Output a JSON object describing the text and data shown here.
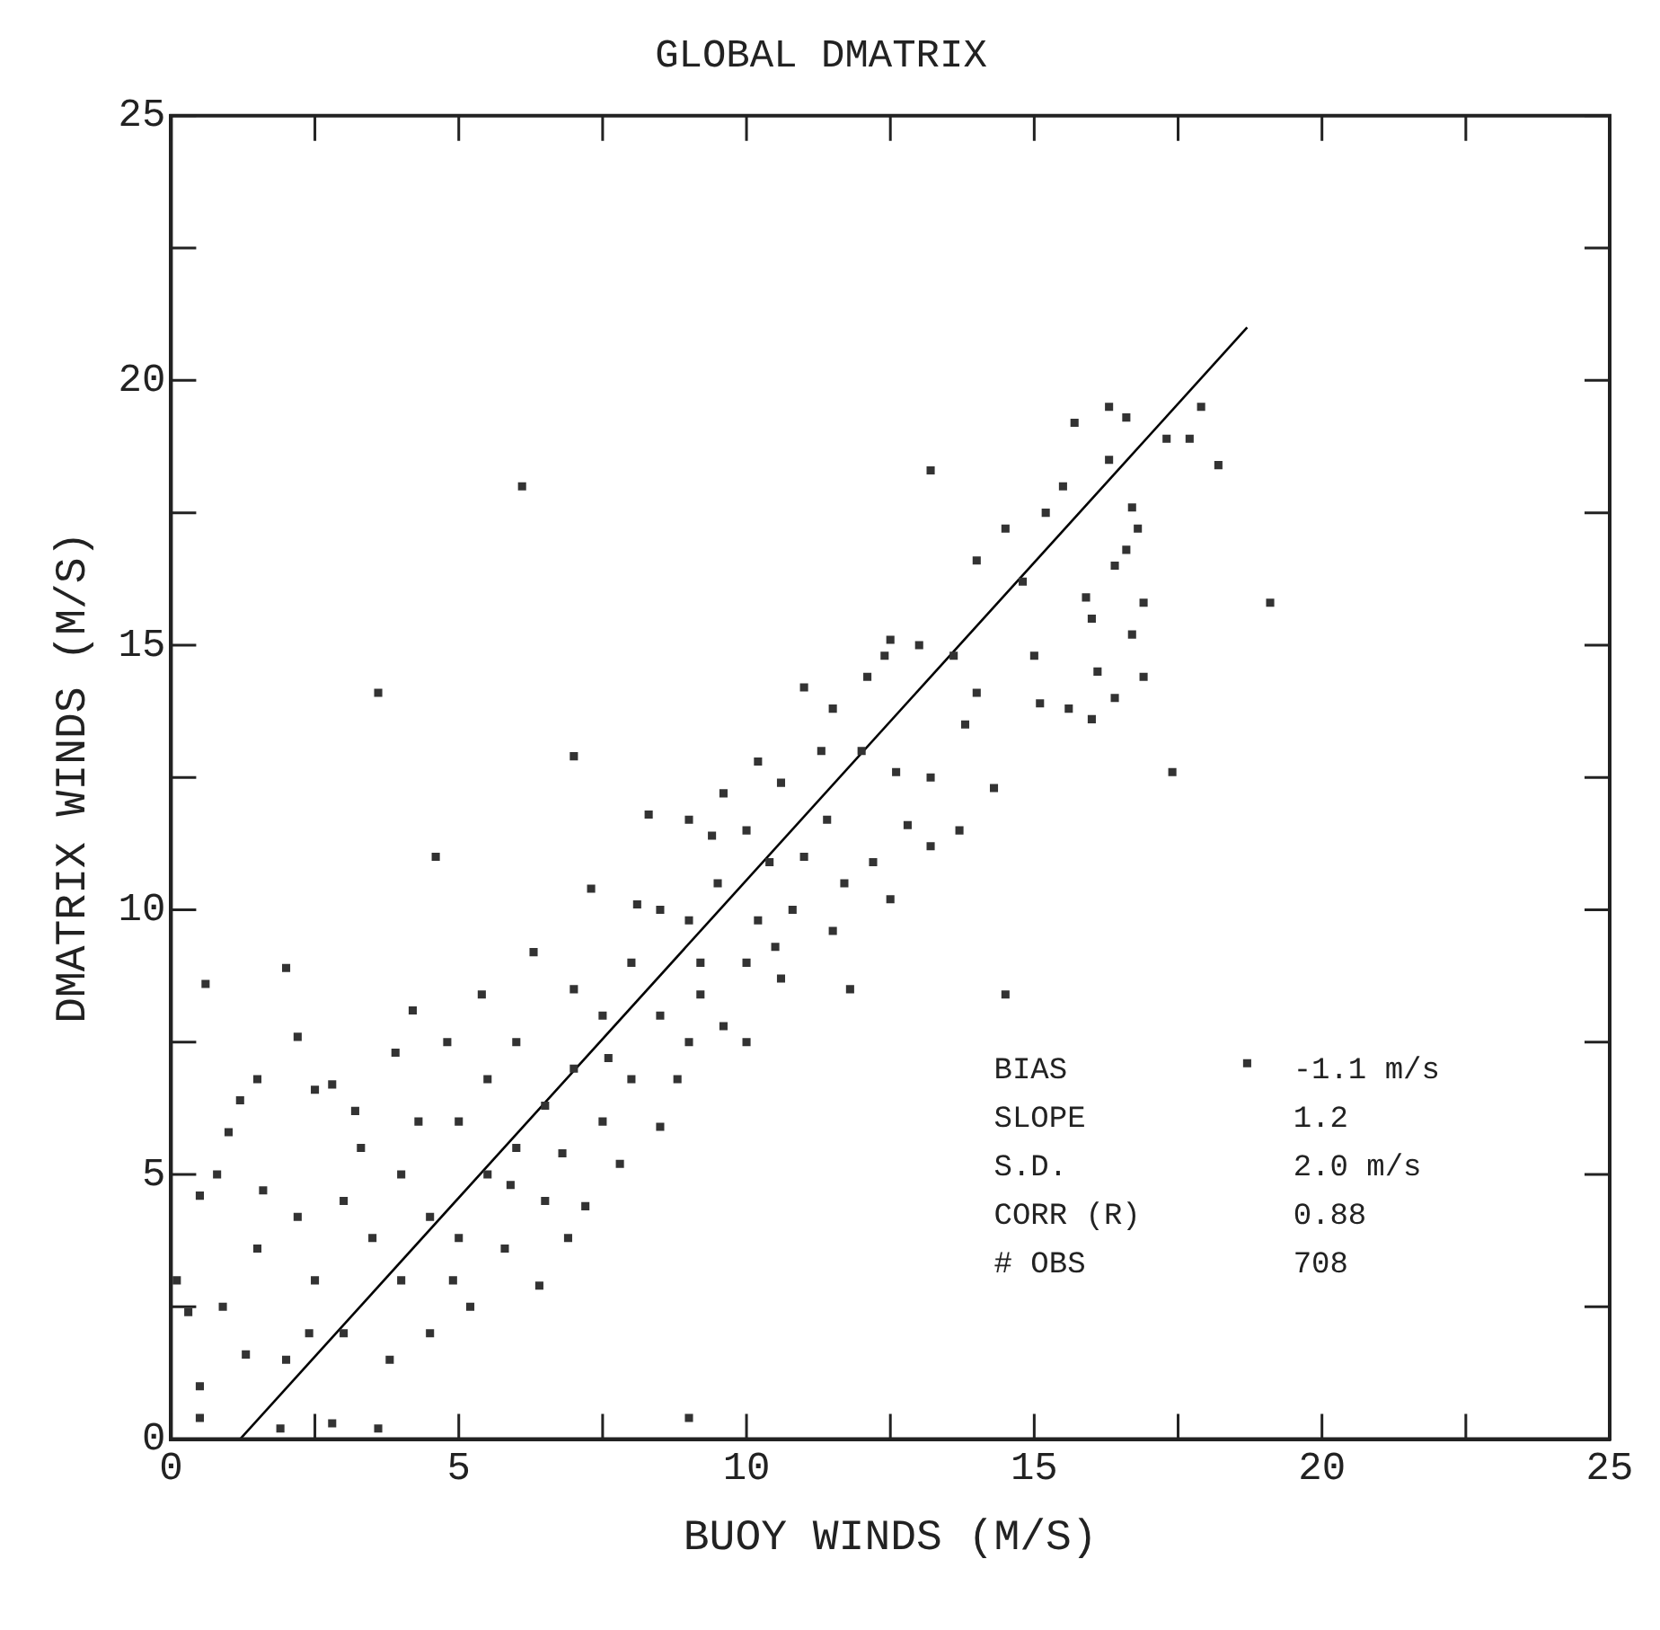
{
  "chart_data": {
    "type": "scatter",
    "title": "GLOBAL DMATRIX",
    "xlabel": "BUOY WINDS (M/S)",
    "ylabel": "DMATRIX WINDS (M/S)",
    "xlim": [
      0,
      25
    ],
    "ylim": [
      0,
      25
    ],
    "xticks": [
      0,
      {
        "value": 2.5,
        "label": null
      },
      5,
      {
        "value": 7.5,
        "label": null
      },
      10,
      {
        "value": 12.5,
        "label": null
      },
      15,
      {
        "value": 17.5,
        "label": null
      },
      20,
      {
        "value": 22.5,
        "label": null
      },
      25
    ],
    "yticks": [
      0,
      {
        "value": 2.5,
        "label": null
      },
      5,
      {
        "value": 7.5,
        "label": null
      },
      10,
      {
        "value": 12.5,
        "label": null
      },
      15,
      {
        "value": 17.5,
        "label": null
      },
      20,
      {
        "value": 22.5,
        "label": null
      },
      25
    ],
    "marker": "square",
    "legend": false,
    "annotations": [
      "BIAS       -1.1 m/s",
      "SLOPE      1.2",
      "S.D.       2.0 m/s",
      "CORR (R)   0.88",
      "# OBS      708"
    ],
    "series": [
      {
        "type": "scatter",
        "color": "#333333",
        "x": [
          6.1,
          3.6,
          4.6,
          7.0,
          0.6,
          2.0,
          9.0,
          14.5,
          19.1,
          17.4,
          13.2,
          0.1,
          0.3,
          0.5,
          15.7,
          16.3,
          16.6,
          17.9,
          17.3,
          17.7,
          18.2,
          16.3,
          15.5,
          15.2,
          16.8,
          16.6,
          16.4,
          15.9,
          16.0,
          16.7,
          16.1,
          16.4,
          15.0,
          14.8,
          14.0,
          14.5,
          15.6,
          15.1,
          16.9,
          16.0,
          16.7,
          16.9,
          13.0,
          12.5,
          12.1,
          12.4,
          13.6,
          14.0,
          13.8,
          11.0,
          11.5,
          11.3,
          12.0,
          10.2,
          10.6,
          9.6,
          9.4,
          8.3,
          9.0,
          12.6,
          13.2,
          14.3,
          13.7,
          12.8,
          13.2,
          11.4,
          12.2,
          11.7,
          12.5,
          11.5,
          10.5,
          11.8,
          10.0,
          9.2,
          10.4,
          2.0,
          2.5,
          3.0,
          3.0,
          3.5,
          4.0,
          4.0,
          4.5,
          5.0,
          5.0,
          5.5,
          5.5,
          6.0,
          6.0,
          6.5,
          6.5,
          7.0,
          7.0,
          7.5,
          7.5,
          8.0,
          8.0,
          8.5,
          8.5,
          9.0,
          9.0,
          9.5,
          10.0,
          10.0,
          4.8,
          5.4,
          6.3,
          7.3,
          8.1,
          3.2,
          2.8,
          2.2,
          1.5,
          1.2,
          2.5,
          3.9,
          4.2,
          1.0,
          0.8,
          1.6,
          2.2,
          1.5,
          0.9,
          1.3,
          0.5,
          0.5,
          1.9,
          2.8,
          3.6,
          4.9,
          6.4,
          5.8,
          7.2,
          8.5,
          6.9,
          4.5,
          3.8,
          2.4,
          5.2,
          8.8,
          9.6,
          10.6,
          7.8,
          3.3,
          4.3,
          5.9,
          6.8,
          7.6,
          9.2,
          10.8,
          11.0,
          10.2,
          18.7
        ],
        "values": [
          18.0,
          14.1,
          11.0,
          12.9,
          8.6,
          8.9,
          0.4,
          8.4,
          15.8,
          12.6,
          18.3,
          3.0,
          2.4,
          4.6,
          19.2,
          19.5,
          19.3,
          19.5,
          18.9,
          18.9,
          18.4,
          18.5,
          18.0,
          17.5,
          17.2,
          16.8,
          16.5,
          15.9,
          15.5,
          15.2,
          14.5,
          14.0,
          14.8,
          16.2,
          16.6,
          17.2,
          13.8,
          13.9,
          14.4,
          13.6,
          17.6,
          15.8,
          15.0,
          15.1,
          14.4,
          14.8,
          14.8,
          14.1,
          13.5,
          14.2,
          13.8,
          13.0,
          13.0,
          12.8,
          12.4,
          12.2,
          11.4,
          11.8,
          11.7,
          12.6,
          12.5,
          12.3,
          11.5,
          11.6,
          11.2,
          11.7,
          10.9,
          10.5,
          10.2,
          9.6,
          9.3,
          8.5,
          7.5,
          9.0,
          10.9,
          1.5,
          3.0,
          2.0,
          4.5,
          3.8,
          5.0,
          3.0,
          4.2,
          6.0,
          3.8,
          5.0,
          6.8,
          5.5,
          7.5,
          6.3,
          4.5,
          7.0,
          8.5,
          6.0,
          8.0,
          9.0,
          6.8,
          8.0,
          10.0,
          7.5,
          9.8,
          10.5,
          9.0,
          11.5,
          7.5,
          8.4,
          9.2,
          10.4,
          10.1,
          6.2,
          6.7,
          7.6,
          6.8,
          6.4,
          6.6,
          7.3,
          8.1,
          5.8,
          5.0,
          4.7,
          4.2,
          3.6,
          2.5,
          1.6,
          1.0,
          0.4,
          0.2,
          0.3,
          0.2,
          3.0,
          2.9,
          3.6,
          4.4,
          5.9,
          3.8,
          2.0,
          1.5,
          2.0,
          2.5,
          6.8,
          7.8,
          8.7,
          5.2,
          5.5,
          6.0,
          4.8,
          5.4,
          7.2,
          8.4,
          10.0,
          11.0,
          9.8,
          7.1
        ]
      },
      {
        "type": "line",
        "color": "#000000",
        "marker": "none",
        "x": [
          1.2,
          18.7
        ],
        "values": [
          0,
          21
        ]
      }
    ]
  }
}
